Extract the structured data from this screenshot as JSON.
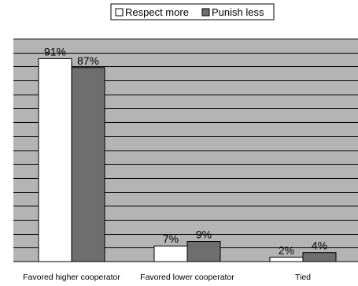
{
  "chart_data": {
    "type": "bar",
    "title": "",
    "xlabel": "",
    "ylabel": "",
    "categories": [
      "Favored higher cooperator",
      "Favored lower cooperator",
      "Tied"
    ],
    "series": [
      {
        "name": "Respect more",
        "values": [
          91,
          7,
          2
        ],
        "labels": [
          "91%",
          "7%",
          "2%"
        ],
        "color": "#ffffff"
      },
      {
        "name": "Punish less",
        "values": [
          87,
          9,
          4
        ],
        "labels": [
          "87%",
          "9%",
          "4%"
        ],
        "color": "#6e6e6e"
      }
    ],
    "ylim": [
      0,
      100
    ],
    "grid": true,
    "plot_background": "#b4b4b4",
    "legend_position": "top-center"
  }
}
